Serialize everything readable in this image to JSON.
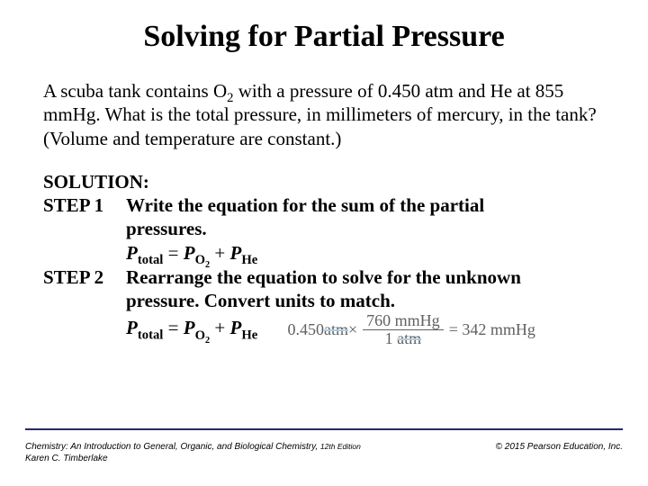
{
  "title": "Solving for Partial Pressure",
  "problem": {
    "line1_a": "A scuba tank contains O",
    "line1_sub": "2",
    "line1_b": " with a pressure of 0.450 atm and He at",
    "line2": "855 mmHg. What is the total pressure, in millimeters of mercury,",
    "line3": "in the tank? (Volume and temperature are constant.)"
  },
  "solution_label": "SOLUTION:",
  "step1": {
    "label": "STEP 1",
    "text_a": "Write the equation for the sum of the partial",
    "text_b": "pressures."
  },
  "step2": {
    "label": "STEP 2",
    "text_a": "Rearrange the equation to solve for the unknown",
    "text_b": "pressure. Convert units to match."
  },
  "eq": {
    "P": "P",
    "total": "total",
    "eq": " = ",
    "O2": "O",
    "two": "2",
    "plus": " +  ",
    "He": "He"
  },
  "conversion": {
    "lhs_val": "0.450 ",
    "lhs_unit": "atm",
    "times": " × ",
    "num_val": "760 mmHg",
    "den_val": "1 ",
    "den_unit": "atm",
    "result": " = 342 mmHg"
  },
  "footer": {
    "book_a": "Chemistry: An Introduction to General, Organic, and Biological Chemistry, ",
    "edition": "12th Edition",
    "author": "Karen C. Timberlake",
    "copyright": "© 2015 Pearson Education, Inc."
  },
  "colors": {
    "rule": "#282870",
    "conversion_text": "#606060",
    "strike": "#b0cde0"
  }
}
